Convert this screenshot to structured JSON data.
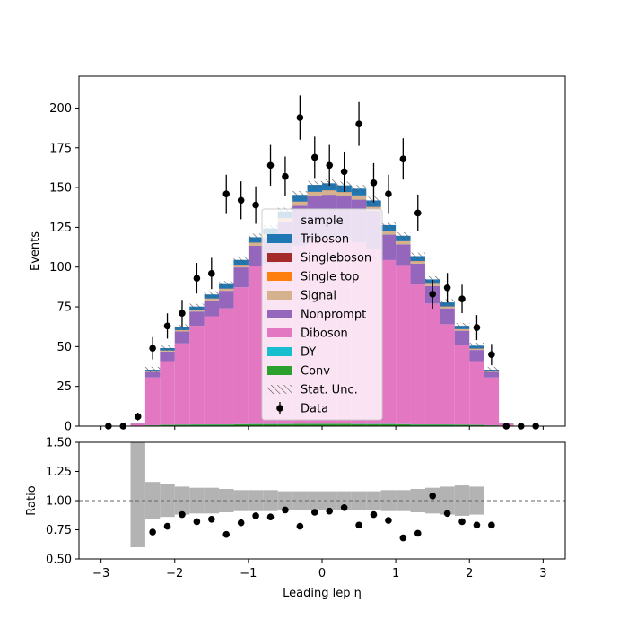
{
  "chart_data": {
    "type": "bar",
    "stacked": true,
    "x_bin_edges": [
      -3.0,
      -2.8,
      -2.6,
      -2.4,
      -2.2,
      -2.0,
      -1.8,
      -1.6,
      -1.4,
      -1.2,
      -1.0,
      -0.8,
      -0.6,
      -0.4,
      -0.2,
      0.0,
      0.2,
      0.4,
      0.6,
      0.8,
      1.0,
      1.2,
      1.4,
      1.6,
      1.8,
      2.0,
      2.2,
      2.4,
      2.6,
      2.8,
      3.0
    ],
    "xlabel": "Leading lep η",
    "ylabel": "Events",
    "ratio_ylabel": "Ratio",
    "xlim": [
      -3.3,
      3.3
    ],
    "ylim": [
      0,
      220
    ],
    "ratio_ylim": [
      0.5,
      1.5
    ],
    "x_ticks": [
      -3,
      -2,
      -1,
      0,
      1,
      2,
      3
    ],
    "x_tick_labels": [
      "−3",
      "−2",
      "−1",
      "0",
      "1",
      "2",
      "3"
    ],
    "y_ticks": [
      0,
      25,
      50,
      75,
      100,
      125,
      150,
      175,
      200
    ],
    "y_tick_labels": [
      "0",
      "25",
      "50",
      "75",
      "100",
      "125",
      "150",
      "175",
      "200"
    ],
    "ratio_ticks": [
      0.5,
      0.75,
      1.0,
      1.25,
      1.5
    ],
    "ratio_tick_labels": [
      "0.50",
      "0.75",
      "1.00",
      "1.25",
      "1.50"
    ],
    "ratio_reference_line": 1.0,
    "legend": {
      "title": "sample",
      "placement": "center",
      "entries": [
        "Triboson",
        "Singleboson",
        "Single top",
        "Signal",
        "Nonprompt",
        "Diboson",
        "DY",
        "Conv",
        "Stat. Unc.",
        "Data"
      ]
    },
    "series": [
      {
        "name": "Conv",
        "color": "#2ca02c",
        "values": [
          0,
          0,
          0,
          0.5,
          0.8,
          0.9,
          1,
          1,
          1,
          1.2,
          1.3,
          1.3,
          1.3,
          1.4,
          1.4,
          1.4,
          1.4,
          1.3,
          1.3,
          1.3,
          1.2,
          1,
          1,
          1,
          0.9,
          0.8,
          0.5,
          0,
          0,
          0
        ]
      },
      {
        "name": "DY",
        "color": "#17becf",
        "values": [
          0,
          0,
          0,
          0.1,
          0.1,
          0.1,
          0.1,
          0.1,
          0.1,
          0.1,
          0.1,
          0.1,
          0.1,
          0.1,
          0.1,
          0.1,
          0.1,
          0.1,
          0.1,
          0.1,
          0.1,
          0.1,
          0.1,
          0.1,
          0.1,
          0.1,
          0.1,
          0,
          0,
          0
        ]
      },
      {
        "name": "Diboson",
        "color": "#e377c2",
        "values": [
          0,
          0,
          1.5,
          30,
          40,
          51,
          62,
          68,
          73,
          86,
          99,
          101,
          105,
          112,
          115,
          117,
          116,
          114,
          110,
          103,
          100,
          88,
          76,
          63,
          50,
          40,
          30,
          1.5,
          0,
          0
        ]
      },
      {
        "name": "Nonprompt",
        "color": "#9467bd",
        "values": [
          0,
          0,
          0.3,
          3.5,
          6,
          7.5,
          9,
          10,
          11,
          12.5,
          13,
          16,
          22,
          25,
          28,
          27,
          27,
          27,
          24,
          16,
          13,
          13,
          11,
          10,
          9,
          7,
          3.5,
          0.3,
          0,
          0
        ]
      },
      {
        "name": "Signal",
        "color": "#d5b18e",
        "values": [
          0,
          0,
          0,
          0.3,
          0.5,
          0.7,
          0.8,
          1,
          1.2,
          1.5,
          1.8,
          2,
          2.3,
          2.5,
          2.6,
          2.6,
          2.5,
          2.5,
          2.3,
          2,
          1.8,
          1.5,
          1.2,
          1,
          0.8,
          0.7,
          0.3,
          0,
          0,
          0
        ]
      },
      {
        "name": "Single top",
        "color": "#ff7f0e",
        "values": [
          0,
          0,
          0,
          0.1,
          0.1,
          0.1,
          0.1,
          0.1,
          0.1,
          0.1,
          0.1,
          0.1,
          0.1,
          0.1,
          0.1,
          0.1,
          0.1,
          0.1,
          0.1,
          0.1,
          0.1,
          0.1,
          0.1,
          0.1,
          0.1,
          0.1,
          0.1,
          0,
          0,
          0
        ]
      },
      {
        "name": "Singleboson",
        "color": "#a52a2a",
        "values": [
          0,
          0,
          0,
          0.1,
          0.1,
          0.1,
          0.1,
          0.1,
          0.1,
          0.1,
          0.1,
          0.1,
          0.1,
          0.1,
          0.1,
          0.1,
          0.1,
          0.1,
          0.1,
          0.1,
          0.1,
          0.1,
          0.1,
          0.1,
          0.1,
          0.1,
          0.1,
          0,
          0,
          0
        ]
      },
      {
        "name": "Triboson",
        "color": "#1f77b4",
        "values": [
          0,
          0,
          0,
          0.9,
          1.5,
          1.8,
          2.1,
          2.5,
          2.8,
          3,
          3.4,
          3.7,
          4,
          4.2,
          4.4,
          4.4,
          4.2,
          4.2,
          4,
          3.8,
          3.4,
          3.1,
          2.8,
          2.5,
          2.1,
          1.8,
          0.9,
          0,
          0,
          0
        ]
      }
    ],
    "stat_unc": {
      "name": "Stat. Unc.",
      "color": "#666666",
      "half_width": [
        0,
        0,
        0,
        1.8,
        1.8,
        1.8,
        1.8,
        2,
        2,
        2.2,
        2.2,
        2.2,
        2.4,
        2.4,
        2.4,
        2.4,
        2.4,
        2.4,
        2.4,
        2.2,
        2.2,
        2.2,
        2,
        2,
        1.8,
        1.8,
        1.8,
        0,
        0,
        0
      ]
    },
    "data": {
      "name": "Data",
      "x": [
        -2.9,
        -2.7,
        -2.5,
        -2.3,
        -2.1,
        -1.9,
        -1.7,
        -1.5,
        -1.3,
        -1.1,
        -0.9,
        -0.7,
        -0.5,
        -0.3,
        -0.1,
        0.1,
        0.3,
        0.5,
        0.7,
        0.9,
        1.1,
        1.3,
        1.5,
        1.7,
        1.9,
        2.1,
        2.3,
        2.5,
        2.7,
        2.9
      ],
      "y": [
        0,
        0,
        6,
        49,
        63,
        71,
        93,
        96,
        146,
        142,
        139,
        164,
        157,
        194,
        169,
        164,
        160,
        190,
        153,
        146,
        168,
        134,
        83,
        87,
        80,
        62,
        45,
        0,
        0,
        0
      ]
    },
    "ratio": {
      "x": [
        -2.3,
        -2.1,
        -1.9,
        -1.7,
        -1.5,
        -1.3,
        -1.1,
        -0.9,
        -0.7,
        -0.5,
        -0.3,
        -0.1,
        0.1,
        0.3,
        0.5,
        0.7,
        0.9,
        1.1,
        1.3,
        1.5,
        1.7,
        1.9,
        2.1,
        2.3
      ],
      "y": [
        0.73,
        0.78,
        0.88,
        0.82,
        0.84,
        0.71,
        0.81,
        0.87,
        0.86,
        0.92,
        0.78,
        0.9,
        0.91,
        0.94,
        0.79,
        0.88,
        0.83,
        0.68,
        0.72,
        1.04,
        0.89,
        0.82,
        0.79,
        0.79
      ]
    },
    "ratio_band": {
      "color": "#b3b3b3",
      "lower": [
        null,
        null,
        0.6,
        0.84,
        0.86,
        0.88,
        0.89,
        0.89,
        0.9,
        0.91,
        0.91,
        0.91,
        0.92,
        0.92,
        0.92,
        0.92,
        0.92,
        0.92,
        0.92,
        0.91,
        0.91,
        0.9,
        0.89,
        0.88,
        0.87,
        0.88,
        null,
        null,
        null,
        null
      ],
      "upper": [
        null,
        null,
        1.5,
        1.16,
        1.14,
        1.12,
        1.11,
        1.11,
        1.1,
        1.09,
        1.09,
        1.09,
        1.08,
        1.08,
        1.08,
        1.08,
        1.08,
        1.08,
        1.08,
        1.09,
        1.09,
        1.1,
        1.11,
        1.12,
        1.13,
        1.12,
        null,
        null,
        null,
        null
      ]
    }
  }
}
